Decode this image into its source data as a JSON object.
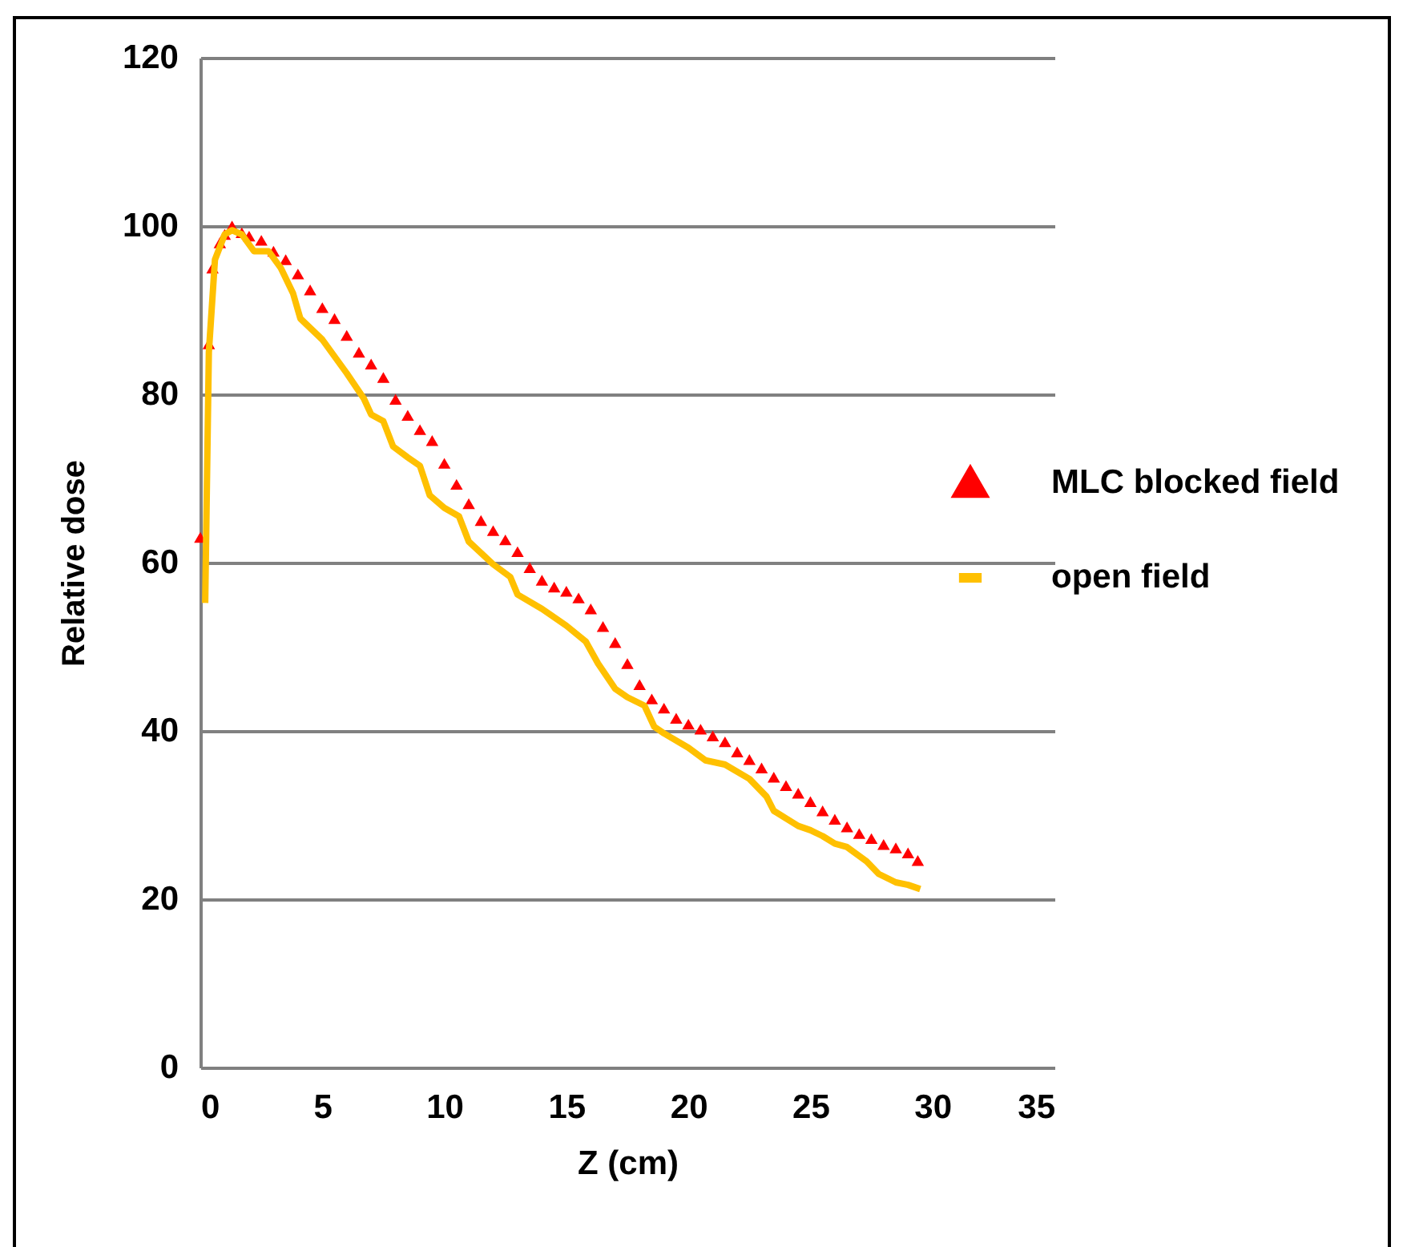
{
  "chart_data": {
    "type": "line",
    "xlabel": "Z (cm)",
    "ylabel": "Relative dose",
    "xlim": [
      0,
      35
    ],
    "ylim": [
      0,
      120
    ],
    "xticks": [
      0,
      5,
      10,
      15,
      20,
      25,
      30,
      35
    ],
    "yticks": [
      0,
      20,
      40,
      60,
      80,
      100,
      120
    ],
    "grid": "y",
    "legend": "right",
    "series": [
      {
        "name": "MLC blocked field",
        "type": "scatter",
        "marker": "triangle",
        "color": "#ff0000",
        "x": [
          0,
          0.35,
          0.5,
          0.8,
          1,
          1.3,
          1.7,
          2,
          2.5,
          3,
          3.5,
          4,
          4.5,
          5,
          5.5,
          6,
          6.5,
          7,
          7.5,
          8,
          8.5,
          9,
          9.5,
          10,
          10.5,
          11,
          11.5,
          12,
          12.5,
          13,
          13.5,
          14,
          14.5,
          15,
          15.5,
          16,
          16.5,
          17,
          17.5,
          18,
          18.5,
          19,
          19.5,
          20,
          20.5,
          21,
          21.5,
          22,
          22.5,
          23,
          23.5,
          24,
          24.5,
          25,
          25.5,
          26,
          26.5,
          27,
          27.5,
          28,
          28.5,
          29,
          29.4
        ],
        "values": [
          63,
          86,
          95,
          98,
          99,
          100,
          99.2,
          98.8,
          98.3,
          97,
          96,
          94.3,
          92.4,
          90.3,
          89,
          87,
          85,
          83.6,
          82,
          79.4,
          77.5,
          75.8,
          74.5,
          71.8,
          69.3,
          67,
          65,
          63.8,
          62.7,
          61.3,
          59.4,
          57.9,
          57.1,
          56.6,
          55.8,
          54.5,
          52.4,
          50.5,
          48,
          45.5,
          43.8,
          42.7,
          41.5,
          40.8,
          40.2,
          39.4,
          38.7,
          37.5,
          36.6,
          35.6,
          34.5,
          33.5,
          32.6,
          31.6,
          30.5,
          29.5,
          28.6,
          27.8,
          27.2,
          26.5,
          26.1,
          25.5,
          24.6
        ]
      },
      {
        "name": "open field",
        "line_style": "solid",
        "color": "#ffc000",
        "x": [
          0.2,
          0.35,
          0.6,
          1,
          1.3,
          1.7,
          2.2,
          2.8,
          3.3,
          3.8,
          4.1,
          5,
          6,
          6.7,
          7,
          7.5,
          7.9,
          8.5,
          9,
          9.4,
          10,
          10.6,
          11,
          12,
          12.7,
          13,
          14,
          15,
          15.8,
          16.3,
          17,
          17.5,
          18.2,
          18.6,
          19,
          20,
          20.7,
          21.5,
          22.5,
          23.2,
          23.5,
          24.5,
          25,
          25.5,
          26,
          26.5,
          27.3,
          27.8,
          28.5,
          29,
          29.5
        ],
        "values": [
          55.2,
          85,
          96,
          99,
          99.5,
          99,
          97,
          97,
          95,
          92,
          89,
          86.5,
          82.5,
          79.5,
          77.6,
          76.8,
          73.8,
          72.5,
          71.5,
          68,
          66.5,
          65.5,
          62.5,
          59.8,
          58.3,
          56.2,
          54.5,
          52.5,
          50.6,
          48,
          45,
          44,
          43,
          40.5,
          39.7,
          38,
          36.5,
          36,
          34.3,
          32.2,
          30.5,
          28.7,
          28.2,
          27.5,
          26.6,
          26.2,
          24.5,
          23,
          22,
          21.7,
          21.2
        ]
      }
    ]
  }
}
